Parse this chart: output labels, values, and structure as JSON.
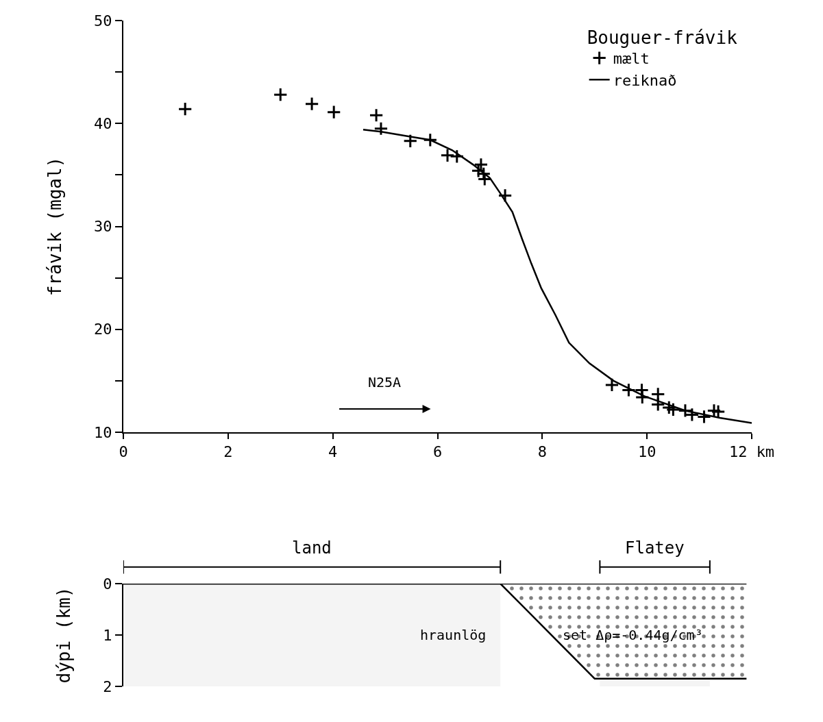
{
  "chart_data": [
    {
      "type": "scatter",
      "ylabel": "frávik (mgal)",
      "legend_title": "Bouguer-frávik",
      "legend": "top right",
      "grid": false,
      "xlim": [
        0,
        12
      ],
      "xticks": [
        0,
        2,
        4,
        6,
        8,
        10,
        {
          "value": 12,
          "label": "12 km"
        }
      ],
      "ylim": [
        10,
        50
      ],
      "yticks": [
        10,
        {
          "value": 15,
          "label": null
        },
        20,
        {
          "value": 25,
          "label": null
        },
        30,
        {
          "value": 35,
          "label": null
        },
        40,
        {
          "value": 45,
          "label": null
        },
        50
      ],
      "annotations": [
        "N25A"
      ],
      "series": [
        {
          "name": "mælt",
          "type": "scatter",
          "marker": "cross",
          "color": "#000000",
          "x": [
            1.18,
            3.0,
            3.6,
            4.02,
            4.83,
            4.92,
            5.48,
            5.86,
            6.19,
            6.37,
            6.83,
            6.78,
            6.88,
            6.9,
            7.29,
            9.33,
            9.65,
            9.9,
            9.91,
            10.21,
            10.21,
            10.42,
            10.5,
            10.73,
            10.86,
            11.09,
            11.28,
            11.36
          ],
          "values": [
            41.4,
            42.8,
            41.9,
            41.1,
            40.8,
            39.5,
            38.3,
            38.4,
            36.9,
            36.8,
            36.0,
            35.4,
            35.1,
            34.6,
            33.0,
            14.6,
            14.1,
            14.1,
            13.4,
            13.7,
            12.7,
            12.4,
            12.2,
            12.1,
            11.7,
            11.5,
            12.1,
            12.0
          ]
        },
        {
          "name": "reiknað",
          "type": "line",
          "line_style": "solid",
          "color": "#000000",
          "x": [
            4.58,
            4.92,
            5.5,
            5.86,
            6.28,
            6.68,
            7.0,
            7.2,
            7.43,
            7.62,
            7.79,
            7.98,
            8.25,
            8.51,
            8.9,
            9.36,
            9.95,
            10.73,
            11.39,
            12.0
          ],
          "values": [
            39.4,
            39.2,
            38.7,
            38.4,
            37.4,
            36.0,
            34.7,
            33.2,
            31.4,
            28.7,
            26.4,
            24.0,
            21.4,
            18.7,
            16.7,
            15.0,
            13.5,
            12.1,
            11.4,
            10.9
          ]
        }
      ]
    },
    {
      "type": "line",
      "ylabel": "dýpi (km)",
      "tick_labels": "y",
      "grid": false,
      "legend": false,
      "xlim": [
        0,
        12
      ],
      "ylim": [
        2,
        0
      ],
      "yticks": [
        0,
        1,
        2
      ],
      "bands": [
        {
          "axis": "x",
          "from": 0,
          "to": 7.2,
          "label": "land"
        },
        {
          "axis": "x",
          "from": 9.1,
          "to": 11.2,
          "label": "Flatey"
        }
      ],
      "annotations": [
        "hraunlög",
        "set Δρ=-0.44g/cm³"
      ],
      "series": [
        {
          "type": "line",
          "color": "#000000",
          "x": [
            0,
            11.9
          ],
          "values": [
            0,
            0
          ]
        },
        {
          "type": "area",
          "color": "#000000",
          "x": [
            0,
            7.2,
            9.0,
            11.9
          ],
          "values": [
            0,
            0,
            1.85,
            1.85
          ]
        }
      ]
    }
  ]
}
